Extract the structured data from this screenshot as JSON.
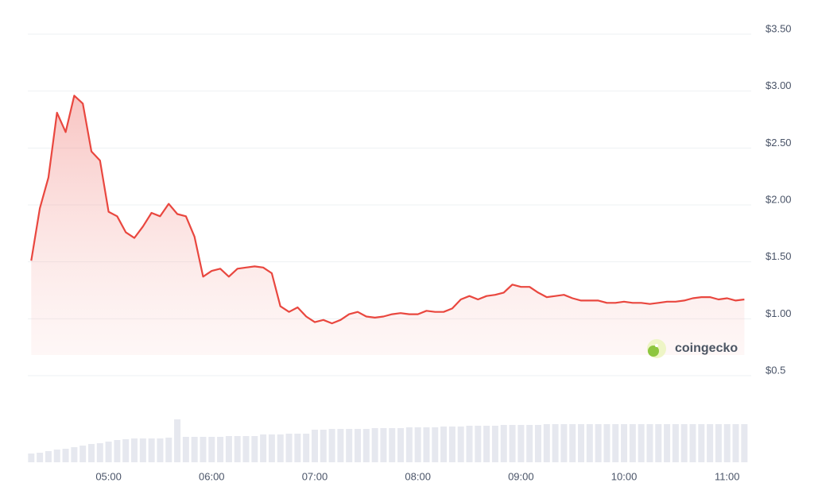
{
  "chart_data": {
    "type": "line",
    "x": [
      255,
      260,
      265,
      270,
      275,
      280,
      285,
      290,
      295,
      300,
      305,
      310,
      315,
      320,
      325,
      330,
      335,
      340,
      345,
      350,
      355,
      360,
      365,
      370,
      375,
      380,
      385,
      390,
      395,
      400,
      405,
      410,
      415,
      420,
      425,
      430,
      435,
      440,
      445,
      450,
      455,
      460,
      465,
      470,
      475,
      480,
      485,
      490,
      495,
      500,
      505,
      510,
      515,
      520,
      525,
      530,
      535,
      540,
      545,
      550,
      555,
      560,
      565,
      570,
      575,
      580,
      585,
      590,
      595,
      600,
      605,
      610,
      615,
      620,
      625,
      630,
      635,
      640,
      645,
      650,
      655,
      660,
      665,
      670
    ],
    "series": [
      {
        "color": "#e9473f",
        "values": [
          1.51,
          1.97,
          2.24,
          2.81,
          2.64,
          2.96,
          2.89,
          2.47,
          2.39,
          1.94,
          1.9,
          1.76,
          1.71,
          1.81,
          1.93,
          1.9,
          2.01,
          1.92,
          1.9,
          1.72,
          1.37,
          1.42,
          1.44,
          1.37,
          1.44,
          1.45,
          1.46,
          1.45,
          1.4,
          1.11,
          1.06,
          1.1,
          1.02,
          0.97,
          0.99,
          0.96,
          0.99,
          1.04,
          1.06,
          1.02,
          1.01,
          1.02,
          1.04,
          1.05,
          1.04,
          1.04,
          1.07,
          1.06,
          1.06,
          1.09,
          1.17,
          1.2,
          1.17,
          1.2,
          1.21,
          1.23,
          1.3,
          1.28,
          1.28,
          1.23,
          1.19,
          1.2,
          1.21,
          1.18,
          1.16,
          1.16,
          1.16,
          1.14,
          1.14,
          1.15,
          1.14,
          1.14,
          1.13,
          1.14,
          1.15,
          1.15,
          1.16,
          1.18,
          1.19,
          1.19,
          1.17,
          1.18,
          1.16,
          1.17
        ]
      }
    ],
    "volume": {
      "color": "#e6e8ef",
      "ylim": [
        0,
        100
      ],
      "values": [
        11,
        12,
        14,
        16,
        17,
        19,
        21,
        23,
        24,
        26,
        28,
        29,
        30,
        30,
        30,
        30,
        31,
        54,
        32,
        32,
        32,
        32,
        32,
        33,
        33,
        33,
        33,
        35,
        35,
        35,
        36,
        36,
        36,
        41,
        41,
        42,
        42,
        42,
        42,
        42,
        43,
        43,
        43,
        43,
        44,
        44,
        44,
        44,
        45,
        45,
        45,
        46,
        46,
        46,
        46,
        47,
        47,
        47,
        47,
        47,
        48,
        48,
        48,
        48,
        48,
        48,
        48,
        48,
        48,
        48,
        48,
        48,
        48,
        48,
        48,
        48,
        48,
        48,
        48,
        48,
        48,
        48,
        48,
        48
      ]
    },
    "xlim": [
      253,
      674
    ],
    "xticks": [
      {
        "value": 300,
        "label": "05:00"
      },
      {
        "value": 360,
        "label": "06:00"
      },
      {
        "value": 420,
        "label": "07:00"
      },
      {
        "value": 480,
        "label": "08:00"
      },
      {
        "value": 540,
        "label": "09:00"
      },
      {
        "value": 600,
        "label": "10:00"
      },
      {
        "value": 660,
        "label": "11:00"
      }
    ],
    "ylim": [
      0.5,
      3.5
    ],
    "yticks": [
      {
        "value": 0.5,
        "label": "$0.5"
      },
      {
        "value": 1.0,
        "label": "$1.00"
      },
      {
        "value": 1.5,
        "label": "$1.50"
      },
      {
        "value": 2.0,
        "label": "$2.00"
      },
      {
        "value": 2.5,
        "label": "$2.50"
      },
      {
        "value": 3.0,
        "label": "$3.00"
      },
      {
        "value": 3.5,
        "label": "$3.50"
      }
    ],
    "grid": true,
    "watermark": "coingecko"
  }
}
